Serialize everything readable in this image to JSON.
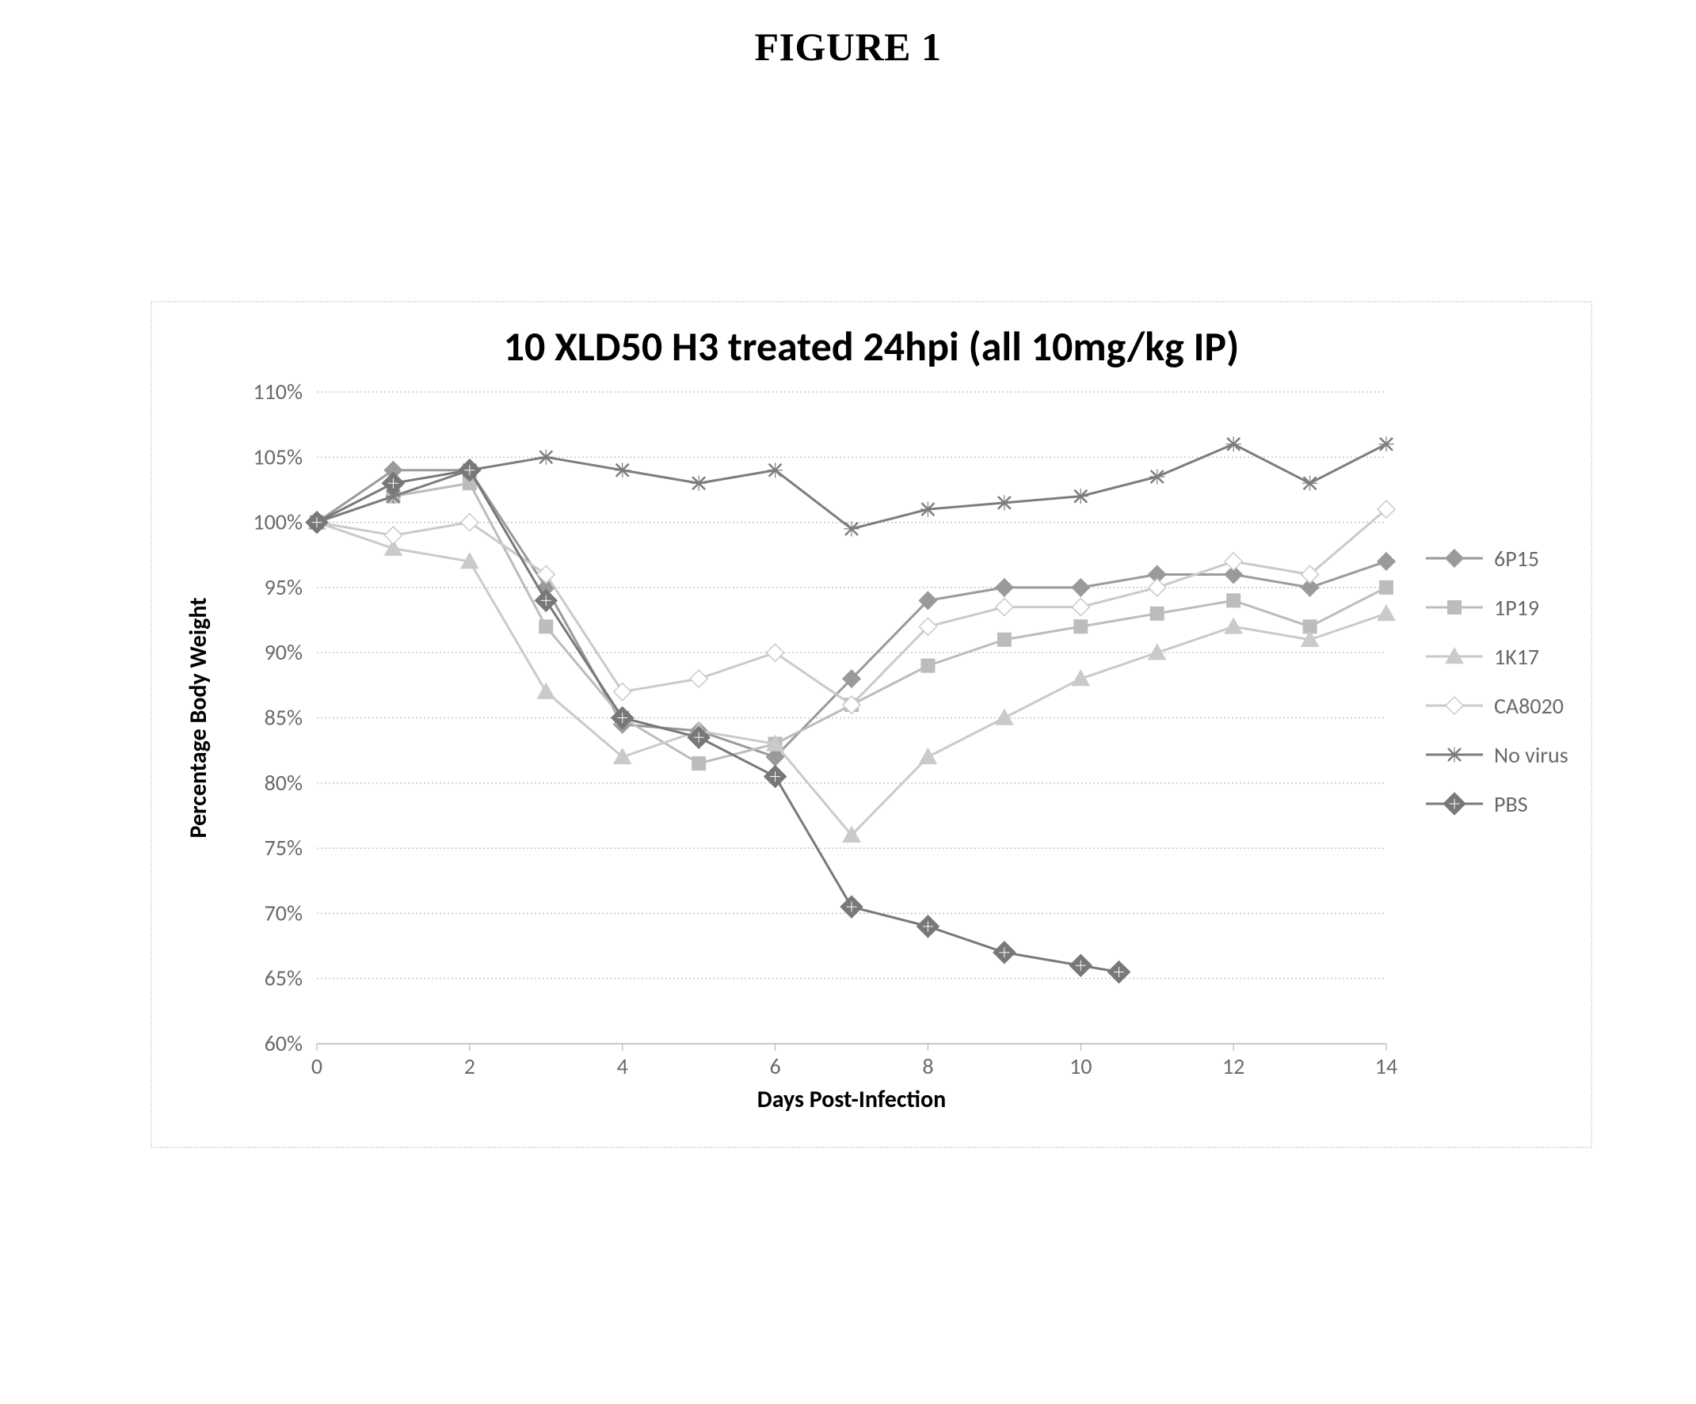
{
  "figure_label": "FIGURE 1",
  "chart": {
    "type": "line",
    "title": "10 XLD50 H3 treated 24hpi (all 10mg/kg IP)",
    "title_fontsize": 52,
    "title_font": "Calibri",
    "background_color": "#ffffff",
    "plot_border_color": "#909090",
    "plot_border_dash": "2,3",
    "grid_color": "#b8b8b8",
    "grid_dash": "2,3",
    "text_color": "#6a6a6a",
    "tick_fontsize": 28,
    "axis_label_fontsize": 30,
    "ylabel": "Percentage Body Weight",
    "xlabel": "Days Post-Infection",
    "xlim": [
      0,
      14
    ],
    "x_tick_step": 2,
    "x_ticks": [
      "0",
      "2",
      "4",
      "6",
      "8",
      "10",
      "12",
      "14"
    ],
    "ylim": [
      60,
      110
    ],
    "y_tick_step": 5,
    "y_ticks": [
      "60%",
      "65%",
      "70%",
      "75%",
      "80%",
      "85%",
      "90%",
      "95%",
      "100%",
      "105%",
      "110%"
    ],
    "legend_position": "right",
    "frame_dash": "1,2",
    "series": [
      {
        "name": "6P15",
        "label": "6P15",
        "marker": "diamond",
        "marker_size": 11,
        "color": "#9a9a9a",
        "line_width": 3,
        "x": [
          0,
          1,
          2,
          3,
          4,
          5,
          6,
          7,
          8,
          9,
          10,
          11,
          12,
          13,
          14
        ],
        "y": [
          100,
          104,
          104,
          95,
          84.5,
          84,
          82,
          88,
          94,
          95,
          95,
          96,
          96,
          95,
          97
        ]
      },
      {
        "name": "1P19",
        "label": "1P19",
        "marker": "square",
        "marker_size": 10,
        "color": "#bcbcbc",
        "line_width": 3,
        "x": [
          0,
          1,
          2,
          3,
          4,
          5,
          6,
          7,
          8,
          9,
          10,
          11,
          12,
          13,
          14
        ],
        "y": [
          100,
          102,
          103,
          92,
          85,
          81.5,
          83,
          86,
          89,
          91,
          92,
          93,
          94,
          92,
          95
        ]
      },
      {
        "name": "1K17",
        "label": "1K17",
        "marker": "triangle",
        "marker_size": 11,
        "color": "#cacaca",
        "line_width": 3,
        "x": [
          0,
          1,
          2,
          3,
          4,
          5,
          6,
          7,
          8,
          9,
          10,
          11,
          12,
          13,
          14
        ],
        "y": [
          100,
          98,
          97,
          87,
          82,
          84,
          83,
          76,
          82,
          85,
          88,
          90,
          92,
          91,
          93
        ]
      },
      {
        "name": "CA8020",
        "label": "CA8020",
        "marker": "diamond-open",
        "marker_size": 11,
        "color": "#cacaca",
        "line_width": 3,
        "x": [
          0,
          1,
          2,
          3,
          4,
          5,
          6,
          7,
          8,
          9,
          10,
          11,
          12,
          13,
          14
        ],
        "y": [
          100,
          99,
          100,
          96,
          87,
          88,
          90,
          86,
          92,
          93.5,
          93.5,
          95,
          97,
          96,
          101
        ]
      },
      {
        "name": "No virus",
        "label": "No virus",
        "marker": "star",
        "marker_size": 8,
        "color": "#7d7d7d",
        "line_width": 3,
        "x": [
          0,
          1,
          2,
          3,
          4,
          5,
          6,
          7,
          8,
          9,
          10,
          11,
          12,
          13,
          14
        ],
        "y": [
          100,
          102,
          104,
          105,
          104,
          103,
          104,
          99.5,
          101,
          101.5,
          102,
          103.5,
          106,
          103,
          106
        ]
      },
      {
        "name": "PBS",
        "label": "PBS",
        "marker": "diamond-dense",
        "marker_size": 13,
        "color": "#787878",
        "line_width": 3,
        "x": [
          0,
          1,
          2,
          3,
          4,
          5,
          6,
          7,
          8,
          9,
          10,
          10.5
        ],
        "y": [
          100,
          103,
          104,
          94,
          85,
          83.5,
          80.5,
          70.5,
          69,
          67,
          66,
          65.5
        ]
      }
    ]
  }
}
